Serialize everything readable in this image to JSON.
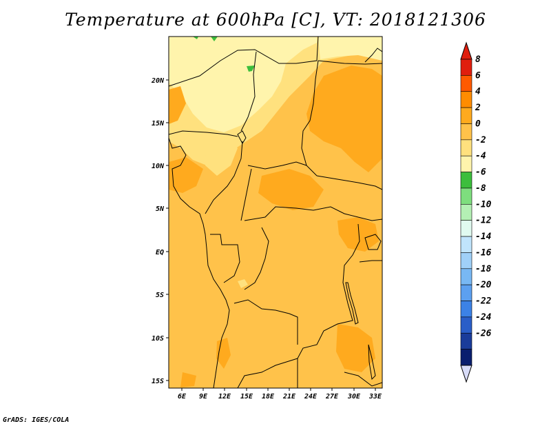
{
  "title": "Temperature at 600hPa [C], VT: 2018121306",
  "credit": "GrADS: IGES/COLA",
  "map": {
    "lat_labels": [
      "20N",
      "15N",
      "10N",
      "5N",
      "EQ",
      "5S",
      "10S",
      "15S"
    ],
    "lon_labels": [
      "6E",
      "9E",
      "12E",
      "15E",
      "18E",
      "21E",
      "24E",
      "27E",
      "30E",
      "33E"
    ]
  },
  "colorbar": {
    "labels": [
      "8",
      "6",
      "4",
      "2",
      "0",
      "-2",
      "-4",
      "-6",
      "-8",
      "-10",
      "-12",
      "-14",
      "-16",
      "-18",
      "-20",
      "-22",
      "-24",
      "-26"
    ],
    "colors": [
      "#e01e0e",
      "#ff5a00",
      "#ff8c00",
      "#ffaa1e",
      "#ffc24a",
      "#ffe17e",
      "#fff4ac",
      "#3cbe3c",
      "#7ede7e",
      "#b4f0b4",
      "#e0faf0",
      "#c0e4fc",
      "#a0d0f8",
      "#78b8f4",
      "#5ca0f0",
      "#3c82e6",
      "#2a5ec8",
      "#1a3c9a",
      "#0a1e6e"
    ],
    "upper_arrow_color": "#e01e0e",
    "lower_arrow_color": "#d8dcf8"
  },
  "field_colors": {
    "ocean_base": "#ffc24a",
    "warm": "#ffaa1e",
    "cool": "#ffe17e",
    "coolest": "#fff4ac",
    "green": "#3cbe3c"
  }
}
